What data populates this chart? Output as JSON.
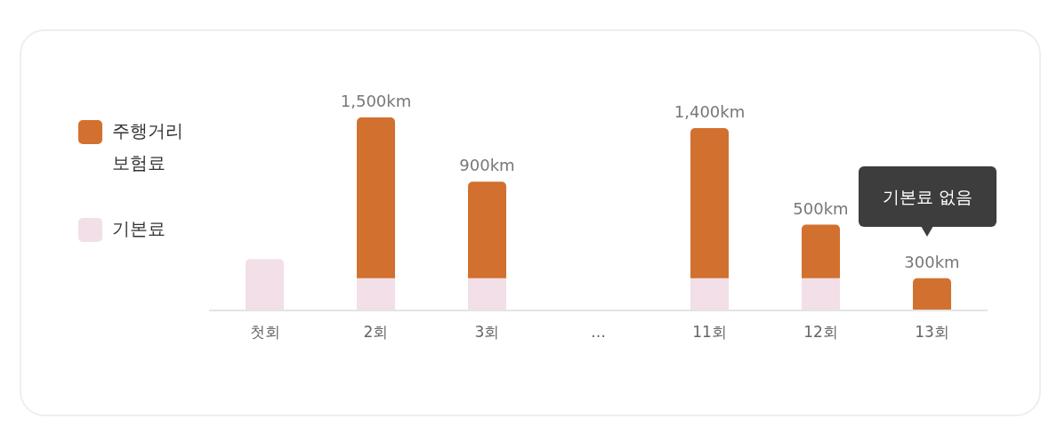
{
  "chart_data": {
    "type": "bar",
    "stacked": true,
    "categories": [
      "첫회",
      "2회",
      "3회",
      "…",
      "11회",
      "12회",
      "13회"
    ],
    "series": [
      {
        "name": "기본료",
        "color": "#f2dfe8",
        "values": [
          480,
          300,
          300,
          null,
          300,
          300,
          null
        ]
      },
      {
        "name": "주행거리 보험료",
        "color": "#d2702f",
        "values": [
          null,
          1500,
          900,
          null,
          1400,
          500,
          300
        ],
        "value_labels": [
          null,
          "1,500km",
          "900km",
          null,
          "1,400km",
          "500km",
          "300km"
        ]
      }
    ],
    "legend": "left",
    "grid": false,
    "tick_labels": "x",
    "annotations": [
      "기본료 없음"
    ]
  }
}
